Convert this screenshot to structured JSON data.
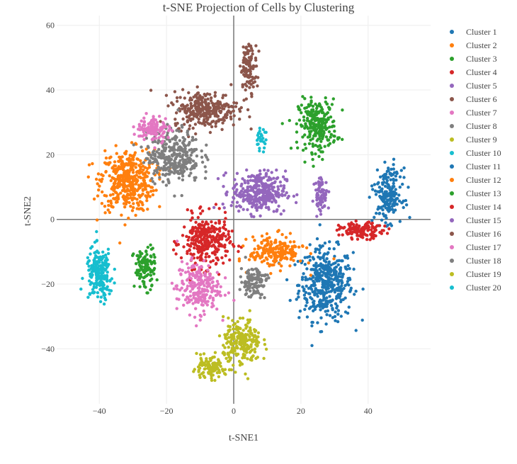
{
  "chart_data": {
    "type": "scatter",
    "title": "t-SNE Projection of Cells by Clustering",
    "xlabel": "t-SNE1",
    "ylabel": "t-SNE2",
    "xlim": [
      -52.7,
      58.6
    ],
    "ylim": [
      -57,
      63
    ],
    "xticks": [
      -40,
      -20,
      0,
      20,
      40
    ],
    "yticks": [
      -40,
      -20,
      0,
      20,
      40,
      60
    ],
    "xtick_labels": [
      "−40",
      "−20",
      "0",
      "20",
      "40"
    ],
    "ytick_labels": [
      "−40",
      "−20",
      "0",
      "20",
      "40",
      "60"
    ],
    "grid": true,
    "legend": "right",
    "note": "Points are summarized per cluster as Gaussian blobs (center, spread, count) in t-SNE units",
    "series": [
      {
        "name": "Cluster 1",
        "color": "#1f77b4",
        "blobs": [
          {
            "cx": 27.4,
            "cy": -20,
            "sx": 5,
            "sy": 7,
            "n": 420
          }
        ]
      },
      {
        "name": "Cluster 2",
        "color": "#ff7f0e",
        "blobs": [
          {
            "cx": -31.6,
            "cy": 12,
            "sx": 5,
            "sy": 6,
            "n": 420
          }
        ]
      },
      {
        "name": "Cluster 3",
        "color": "#2ca02c",
        "blobs": [
          {
            "cx": 25,
            "cy": 29,
            "sx": 3.5,
            "sy": 5,
            "n": 260
          }
        ]
      },
      {
        "name": "Cluster 4",
        "color": "#d62728",
        "blobs": [
          {
            "cx": -8.4,
            "cy": -7,
            "sx": 4.5,
            "sy": 5,
            "n": 300
          }
        ]
      },
      {
        "name": "Cluster 5",
        "color": "#9467bd",
        "blobs": [
          {
            "cx": 7.4,
            "cy": 8.5,
            "sx": 5,
            "sy": 4,
            "n": 330
          }
        ]
      },
      {
        "name": "Cluster 6",
        "color": "#8c564b",
        "blobs": [
          {
            "cx": -8.4,
            "cy": 34,
            "sx": 6,
            "sy": 3.5,
            "n": 300
          }
        ]
      },
      {
        "name": "Cluster 7",
        "color": "#e377c2",
        "blobs": [
          {
            "cx": -10.5,
            "cy": -21,
            "sx": 4,
            "sy": 5,
            "n": 230
          }
        ]
      },
      {
        "name": "Cluster 8",
        "color": "#7f7f7f",
        "blobs": [
          {
            "cx": -18,
            "cy": 19.5,
            "sx": 5,
            "sy": 5,
            "n": 330
          }
        ]
      },
      {
        "name": "Cluster 9",
        "color": "#bcbd22",
        "blobs": [
          {
            "cx": 2.5,
            "cy": -38,
            "sx": 3.5,
            "sy": 4.5,
            "n": 230
          }
        ]
      },
      {
        "name": "Cluster 10",
        "color": "#17becf",
        "blobs": [
          {
            "cx": -40,
            "cy": -17,
            "sx": 2.5,
            "sy": 5,
            "n": 200
          }
        ]
      },
      {
        "name": "Cluster 11",
        "color": "#1f77b4",
        "blobs": [
          {
            "cx": 46,
            "cy": 7.5,
            "sx": 2.5,
            "sy": 5,
            "n": 200
          }
        ]
      },
      {
        "name": "Cluster 12",
        "color": "#ff7f0e",
        "blobs": [
          {
            "cx": 12.7,
            "cy": -10,
            "sx": 5,
            "sy": 3,
            "n": 200
          }
        ]
      },
      {
        "name": "Cluster 13",
        "color": "#2ca02c",
        "blobs": [
          {
            "cx": -26.5,
            "cy": -15,
            "sx": 2,
            "sy": 4,
            "n": 110
          }
        ]
      },
      {
        "name": "Cluster 14",
        "color": "#d62728",
        "blobs": [
          {
            "cx": 38,
            "cy": -3.5,
            "sx": 4,
            "sy": 1.5,
            "n": 130
          }
        ]
      },
      {
        "name": "Cluster 15",
        "color": "#9467bd",
        "blobs": [
          {
            "cx": 26,
            "cy": 7.5,
            "sx": 1.2,
            "sy": 3.5,
            "n": 70
          }
        ]
      },
      {
        "name": "Cluster 16",
        "color": "#8c564b",
        "blobs": [
          {
            "cx": 4.5,
            "cy": 47,
            "sx": 1.5,
            "sy": 4.5,
            "n": 110
          }
        ]
      },
      {
        "name": "Cluster 17",
        "color": "#e377c2",
        "blobs": [
          {
            "cx": -24,
            "cy": 28,
            "sx": 3,
            "sy": 2.5,
            "n": 110
          }
        ]
      },
      {
        "name": "Cluster 18",
        "color": "#7f7f7f",
        "blobs": [
          {
            "cx": 6,
            "cy": -19,
            "sx": 2.5,
            "sy": 3,
            "n": 110
          }
        ]
      },
      {
        "name": "Cluster 19",
        "color": "#bcbd22",
        "blobs": [
          {
            "cx": -7.5,
            "cy": -46,
            "sx": 3,
            "sy": 2,
            "n": 110
          }
        ]
      },
      {
        "name": "Cluster 20",
        "color": "#17becf",
        "blobs": [
          {
            "cx": 8,
            "cy": 25,
            "sx": 1,
            "sy": 2,
            "n": 30
          }
        ]
      }
    ]
  }
}
